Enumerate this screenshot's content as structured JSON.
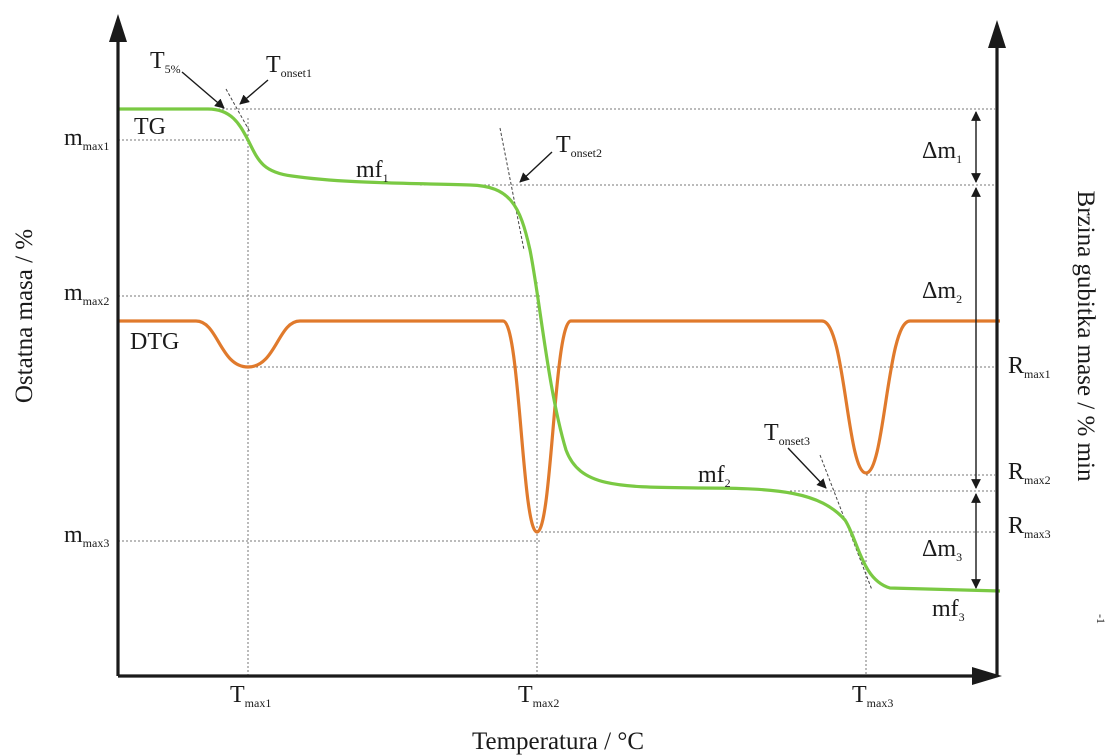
{
  "axes": {
    "x_title": "Temperatura / °C",
    "y_left_title": "Ostatna masa / %",
    "y_right_title": "Brzina gubitka mase / % min",
    "y_right_title_sup": "-1"
  },
  "curves": {
    "tg": {
      "label": "TG",
      "color": "#7ac943"
    },
    "dtg": {
      "label": "DTG",
      "color": "#e07a2c"
    }
  },
  "labels": {
    "t5": {
      "main": "T",
      "sub": "5%"
    },
    "tonset1": {
      "main": "T",
      "sub": "onset1"
    },
    "tonset2": {
      "main": "T",
      "sub": "onset2"
    },
    "tonset3": {
      "main": "T",
      "sub": "onset3"
    },
    "mmax1": {
      "main": "m",
      "sub": "max1"
    },
    "mmax2": {
      "main": "m",
      "sub": "max2"
    },
    "mmax3": {
      "main": "m",
      "sub": "max3"
    },
    "mf1": {
      "main": "mf",
      "sub": "1"
    },
    "mf2": {
      "main": "mf",
      "sub": "2"
    },
    "mf3": {
      "main": "mf",
      "sub": "3"
    },
    "dm1": {
      "main": "Δm",
      "sub": "1"
    },
    "dm2": {
      "main": "Δm",
      "sub": "2"
    },
    "dm3": {
      "main": "Δm",
      "sub": "3"
    },
    "rmax1": {
      "main": "R",
      "sub": "max1"
    },
    "rmax2": {
      "main": "R",
      "sub": "max2"
    },
    "rmax3": {
      "main": "R",
      "sub": "max3"
    },
    "tmax1": {
      "main": "T",
      "sub": "max1"
    },
    "tmax2": {
      "main": "T",
      "sub": "max2"
    },
    "tmax3": {
      "main": "T",
      "sub": "max3"
    }
  }
}
